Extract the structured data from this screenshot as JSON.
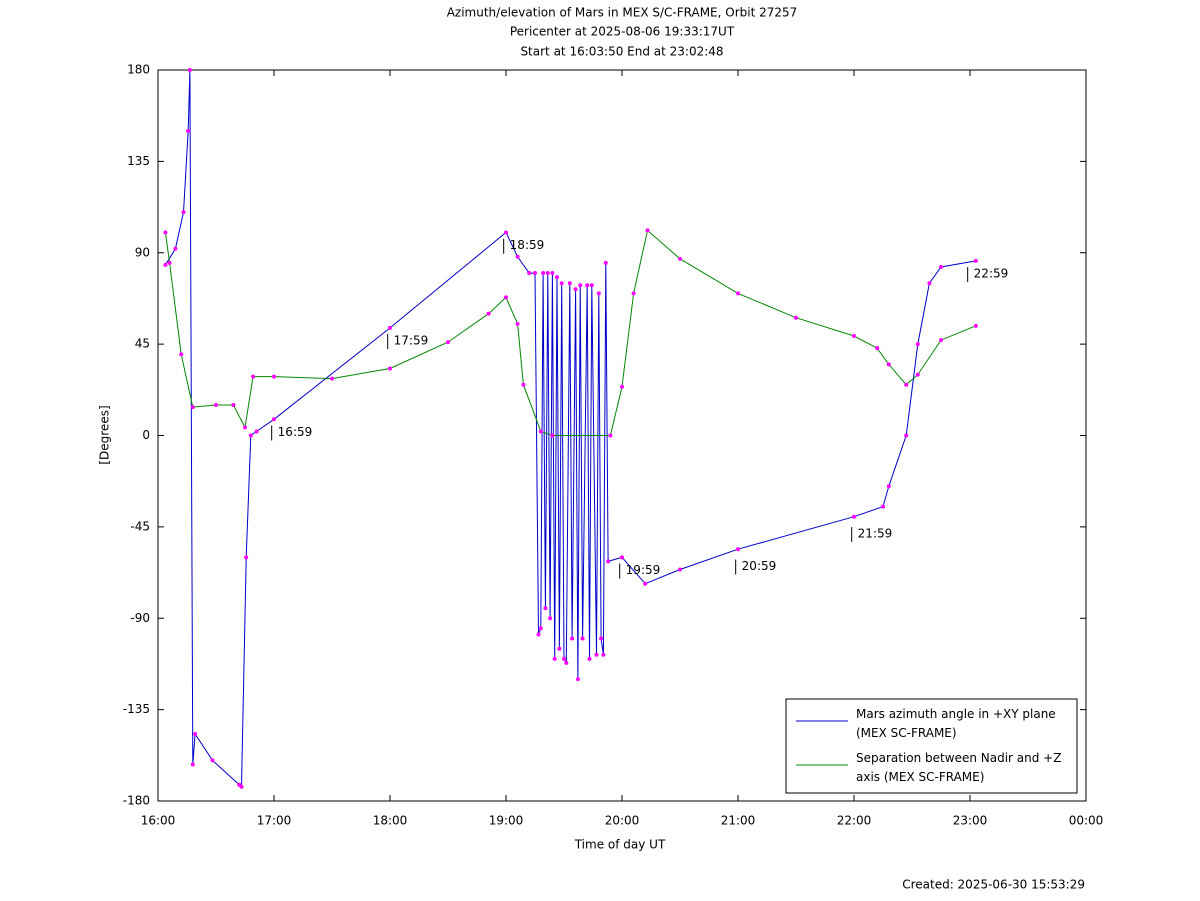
{
  "chart_data": {
    "type": "line",
    "title": [
      "Azimuth/elevation of Mars in MEX S/C-FRAME,  Orbit 27257",
      "Pericenter at 2025-08-06 19:33:17UT",
      "Start at 16:03:50 End at 23:02:48"
    ],
    "xlabel": "Time of day UT",
    "ylabel": "[Degrees]",
    "footer": "Created: 2025-06-30 15:53:29",
    "xlim": [
      16,
      24
    ],
    "xticks": [
      {
        "value": 16,
        "label": "16:00"
      },
      {
        "value": 17,
        "label": "17:00"
      },
      {
        "value": 18,
        "label": "18:00"
      },
      {
        "value": 19,
        "label": "19:00"
      },
      {
        "value": 20,
        "label": "20:00"
      },
      {
        "value": 21,
        "label": "21:00"
      },
      {
        "value": 22,
        "label": "22:00"
      },
      {
        "value": 23,
        "label": "23:00"
      },
      {
        "value": 24,
        "label": "00:00"
      }
    ],
    "ylim": [
      -180,
      180
    ],
    "yticks": [
      180,
      135,
      90,
      45,
      0,
      -45,
      -90,
      -135,
      -180
    ],
    "grid": false,
    "legend": "lower right",
    "series": [
      {
        "name": "Mars azimuth angle in +XY plane (MEX SC-FRAME)",
        "color": "#0000cc",
        "x": [
          16.064,
          16.15,
          16.22,
          16.26,
          16.275,
          16.3,
          16.32,
          16.47,
          16.7,
          16.72,
          16.76,
          16.8,
          16.85,
          17.0,
          18.0,
          19.0,
          19.1,
          19.2,
          19.25,
          19.28,
          19.3,
          19.32,
          19.34,
          19.36,
          19.38,
          19.4,
          19.42,
          19.44,
          19.46,
          19.48,
          19.5,
          19.52,
          19.55,
          19.57,
          19.6,
          19.62,
          19.64,
          19.66,
          19.7,
          19.72,
          19.74,
          19.78,
          19.8,
          19.82,
          19.84,
          19.86,
          19.88,
          20.0,
          20.2,
          20.5,
          21.0,
          22.0,
          22.25,
          22.3,
          22.45,
          22.55,
          22.65,
          22.75,
          23.05
        ],
        "values": [
          84,
          92,
          110,
          150,
          180,
          -162,
          -147,
          -160,
          -172,
          -173,
          -60,
          0,
          2,
          8,
          53,
          100,
          88,
          80,
          80,
          -98,
          -95,
          80,
          -85,
          80,
          -90,
          80,
          -110,
          78,
          -105,
          75,
          -110,
          -112,
          75,
          -100,
          72,
          -120,
          74,
          -100,
          74,
          -110,
          74,
          -108,
          70,
          -100,
          -108,
          85,
          -62,
          -60,
          -73,
          -66,
          -56,
          -40,
          -35,
          -25,
          0,
          45,
          75,
          83,
          86
        ]
      },
      {
        "name": "Separation between Nadir and +Z axis (MEX SC-FRAME)",
        "color": "#008800",
        "x": [
          16.064,
          16.1,
          16.2,
          16.3,
          16.5,
          16.65,
          16.75,
          16.82,
          17.0,
          17.5,
          18.0,
          18.5,
          18.85,
          19.0,
          19.1,
          19.15,
          19.3,
          19.4,
          19.9,
          20.0,
          20.1,
          20.22,
          20.5,
          21.0,
          21.5,
          22.0,
          22.2,
          22.3,
          22.45,
          22.55,
          22.75,
          23.05
        ],
        "values": [
          100,
          85,
          40,
          14,
          15,
          15,
          4,
          29,
          29,
          28,
          33,
          46,
          60,
          68,
          55,
          25,
          2,
          0,
          0,
          24,
          70,
          101,
          87,
          70,
          58,
          49,
          43,
          35,
          25,
          30,
          47,
          54
        ]
      }
    ],
    "annotations": [
      {
        "text": "16:59",
        "x": 16.98,
        "y": 0
      },
      {
        "text": "17:59",
        "x": 17.98,
        "y": 45
      },
      {
        "text": "18:59",
        "x": 18.98,
        "y": 92
      },
      {
        "text": "19:59",
        "x": 19.98,
        "y": -68
      },
      {
        "text": "20:59",
        "x": 20.98,
        "y": -66
      },
      {
        "text": "21:59",
        "x": 21.98,
        "y": -50
      },
      {
        "text": "22:59",
        "x": 22.98,
        "y": 78
      }
    ]
  }
}
